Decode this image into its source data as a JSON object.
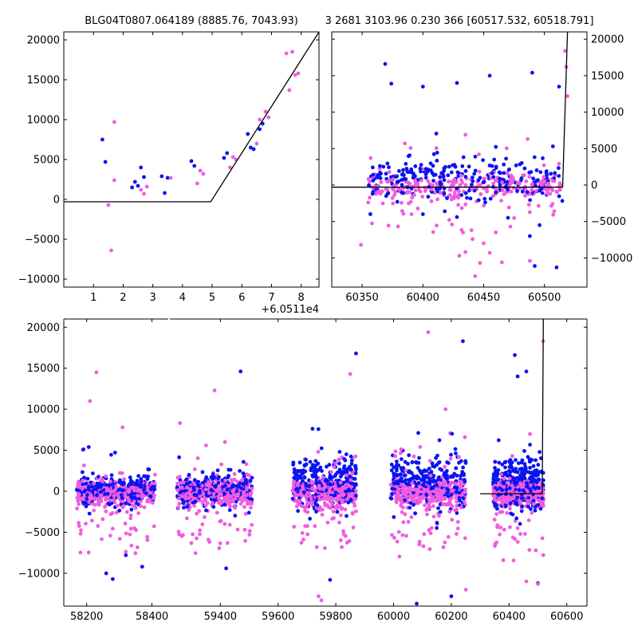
{
  "figure": {
    "title_left": "BLG04T0807.064189 (8885.76, 7043.93)",
    "title_right": "3 2681 3103.96 0.230 366 [60517.532, 60518.791]"
  },
  "colors": {
    "series_a": "#0a14f0",
    "series_b": "#f05ce0",
    "model": "#000000"
  },
  "chart_data": [
    {
      "id": "top-left",
      "type": "scatter",
      "xlim": [
        0,
        8.6
      ],
      "ylim": [
        -11000,
        21000
      ],
      "xticks": [
        1,
        2,
        3,
        4,
        5,
        6,
        7,
        8
      ],
      "xtick_labels": [
        "1",
        "2",
        "3",
        "4",
        "5",
        "6",
        "7",
        "8"
      ],
      "yticks": [
        -10000,
        -5000,
        0,
        5000,
        10000,
        15000,
        20000
      ],
      "ytick_labels": [
        "−10000",
        "−5000",
        "0",
        "5000",
        "10000",
        "15000",
        "20000"
      ],
      "x_offset_label": "+6.0511e4",
      "series": [
        {
          "color_key": "series_a",
          "points": [
            [
              1.3,
              7500
            ],
            [
              1.4,
              4700
            ],
            [
              2.3,
              1500
            ],
            [
              2.4,
              2200
            ],
            [
              2.5,
              1700
            ],
            [
              2.6,
              4000
            ],
            [
              2.7,
              2800
            ],
            [
              3.3,
              2900
            ],
            [
              3.4,
              800
            ],
            [
              3.5,
              2700
            ],
            [
              4.3,
              4800
            ],
            [
              4.4,
              4200
            ],
            [
              5.4,
              5200
            ],
            [
              5.5,
              5800
            ],
            [
              6.2,
              8200
            ],
            [
              6.3,
              6500
            ],
            [
              6.4,
              6300
            ],
            [
              6.6,
              8800
            ],
            [
              6.7,
              9500
            ]
          ]
        },
        {
          "color_key": "series_b",
          "points": [
            [
              1.5,
              -700
            ],
            [
              1.6,
              -6400
            ],
            [
              1.7,
              9700
            ],
            [
              1.7,
              2400
            ],
            [
              2.6,
              1200
            ],
            [
              2.7,
              700
            ],
            [
              2.8,
              1600
            ],
            [
              3.6,
              2700
            ],
            [
              4.5,
              2000
            ],
            [
              4.6,
              3600
            ],
            [
              4.7,
              3200
            ],
            [
              5.6,
              4000
            ],
            [
              5.7,
              5300
            ],
            [
              5.8,
              5000
            ],
            [
              6.5,
              7000
            ],
            [
              6.6,
              10000
            ],
            [
              6.8,
              11000
            ],
            [
              6.9,
              10300
            ],
            [
              7.5,
              18300
            ],
            [
              7.6,
              13700
            ],
            [
              7.7,
              18500
            ],
            [
              7.8,
              15600
            ],
            [
              7.9,
              15800
            ]
          ]
        }
      ],
      "model_line": [
        [
          0,
          -300
        ],
        [
          4.95,
          -300
        ],
        [
          8.6,
          21000
        ]
      ]
    },
    {
      "id": "top-right",
      "type": "scatter",
      "xlim": [
        60325,
        60535
      ],
      "ylim": [
        -14000,
        21000
      ],
      "xticks": [
        60350,
        60400,
        60450,
        60500
      ],
      "xtick_labels": [
        "60350",
        "60400",
        "60450",
        "60500"
      ],
      "yticks": [
        -10000,
        -5000,
        0,
        5000,
        10000,
        15000,
        20000
      ],
      "ytick_labels": [
        "−10000",
        "−5000",
        "0",
        "5000",
        "10000",
        "15000",
        "20000"
      ],
      "series": [
        {
          "color_key": "series_a",
          "outliers": [
            [
              60369,
              16600
            ],
            [
              60374,
              13900
            ],
            [
              60400,
              13500
            ],
            [
              60428,
              14000
            ],
            [
              60455,
              15000
            ],
            [
              60490,
              15400
            ],
            [
              60512,
              13500
            ],
            [
              60400,
              -4000
            ],
            [
              60418,
              -3600
            ],
            [
              60428,
              -4400
            ],
            [
              60488,
              -7000
            ],
            [
              60492,
              -11100
            ],
            [
              60510,
              -11300
            ],
            [
              60496,
              -5500
            ],
            [
              60470,
              -4500
            ],
            [
              60460,
              -1000
            ]
          ]
        },
        {
          "color_key": "series_b",
          "outliers": [
            [
              60349,
              -8200
            ],
            [
              60355,
              -2400
            ],
            [
              60357,
              3700
            ],
            [
              60430,
              -9700
            ],
            [
              60435,
              -9200
            ],
            [
              60440,
              -6200
            ],
            [
              60443,
              -12500
            ],
            [
              60447,
              -10700
            ],
            [
              60450,
              -8000
            ],
            [
              60455,
              -9300
            ],
            [
              60460,
              -6500
            ],
            [
              60465,
              -10600
            ],
            [
              60472,
              -5700
            ],
            [
              60488,
              -10400
            ],
            [
              60508,
              -3600
            ],
            [
              60517,
              18400
            ],
            [
              60518,
              16200
            ],
            [
              60519,
              12200
            ]
          ]
        }
      ],
      "model_line": [
        [
          60325,
          -300
        ],
        [
          60515,
          -300
        ],
        [
          60519,
          21000
        ]
      ]
    },
    {
      "id": "bottom",
      "type": "scatter",
      "xlim": [
        58130,
        60670
      ],
      "ylim": [
        -14000,
        21000
      ],
      "xticks": [
        58200,
        58400,
        59400,
        59600,
        59800,
        60000,
        60200,
        60400,
        60600
      ],
      "xtick_labels": [
        "58200",
        "58400",
        "59400",
        "59600",
        "59800",
        "60000",
        "60200",
        "60400",
        "60600"
      ],
      "yticks": [
        -10000,
        -5000,
        0,
        5000,
        10000,
        15000,
        20000
      ],
      "ytick_labels": [
        "−10000",
        "−5000",
        "0",
        "5000",
        "10000",
        "15000",
        "20000"
      ],
      "seasons": [
        [
          58170,
          58410
        ],
        [
          59250,
          59510
        ],
        [
          59650,
          59870
        ],
        [
          59990,
          60250
        ],
        [
          60345,
          60520
        ]
      ],
      "series": [
        {
          "color_key": "series_a",
          "outliers": [
            [
              58260,
              -10000
            ],
            [
              58280,
              -10700
            ],
            [
              58320,
              -7800
            ],
            [
              58370,
              -9200
            ],
            [
              59420,
              -9400
            ],
            [
              59470,
              14600
            ],
            [
              59780,
              -10800
            ],
            [
              59870,
              16800
            ],
            [
              60080,
              -13700
            ],
            [
              60200,
              -12800
            ],
            [
              60240,
              18300
            ],
            [
              60420,
              16600
            ],
            [
              60430,
              14000
            ],
            [
              60460,
              14600
            ],
            [
              60500,
              -11200
            ]
          ]
        },
        {
          "color_key": "series_b",
          "outliers": [
            [
              58230,
              14500
            ],
            [
              58210,
              11000
            ],
            [
              58310,
              7800
            ],
            [
              59260,
              8300
            ],
            [
              59380,
              12300
            ],
            [
              59740,
              -12800
            ],
            [
              59750,
              -13300
            ],
            [
              59850,
              14300
            ],
            [
              60120,
              19400
            ],
            [
              60180,
              10000
            ],
            [
              60250,
              -12000
            ],
            [
              60380,
              -8400
            ],
            [
              60460,
              -11000
            ],
            [
              60500,
              -11300
            ],
            [
              60518,
              18300
            ]
          ]
        }
      ],
      "model_line": [
        [
          60300,
          -300
        ],
        [
          60515,
          -300
        ],
        [
          60519,
          21000
        ]
      ]
    }
  ]
}
